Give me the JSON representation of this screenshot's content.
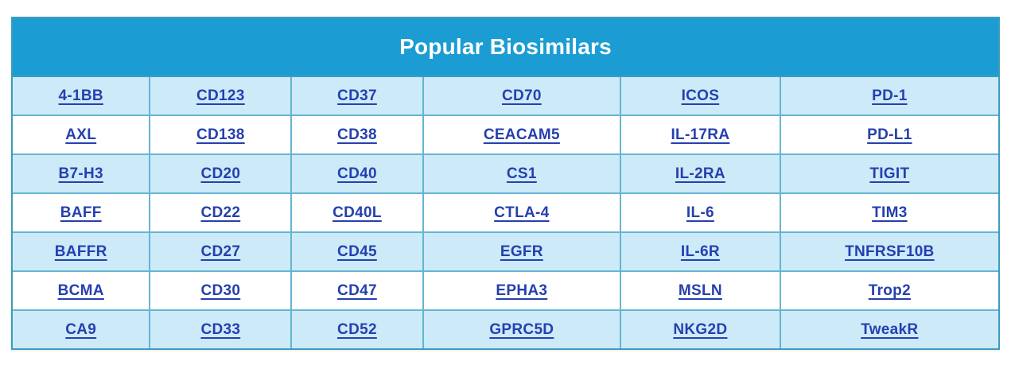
{
  "table": {
    "title": "Popular Biosimilars",
    "rows": [
      [
        "4-1BB",
        "CD123",
        "CD37",
        "CD70",
        "ICOS",
        "PD-1"
      ],
      [
        "AXL",
        "CD138",
        "CD38",
        "CEACAM5",
        "IL-17RA",
        "PD-L1"
      ],
      [
        "B7-H3",
        "CD20",
        "CD40",
        "CS1",
        "IL-2RA",
        "TIGIT"
      ],
      [
        "BAFF",
        "CD22",
        "CD40L",
        "CTLA-4",
        "IL-6",
        "TIM3"
      ],
      [
        "BAFFR",
        "CD27",
        "CD45",
        "EGFR",
        "IL-6R",
        "TNFRSF10B"
      ],
      [
        "BCMA",
        "CD30",
        "CD47",
        "EPHA3",
        "MSLN",
        "Trop2"
      ],
      [
        "CA9",
        "CD33",
        "CD52",
        "GPRC5D",
        "NKG2D",
        "TweakR"
      ]
    ]
  },
  "colors": {
    "header_bg": "#1b9dd3",
    "header_text": "#ffffff",
    "stripe_bg": "#cdeaf9",
    "white_bg": "#ffffff",
    "border": "#64b5d1",
    "outer_border": "#3e9cbd",
    "link": "#2540ae"
  }
}
